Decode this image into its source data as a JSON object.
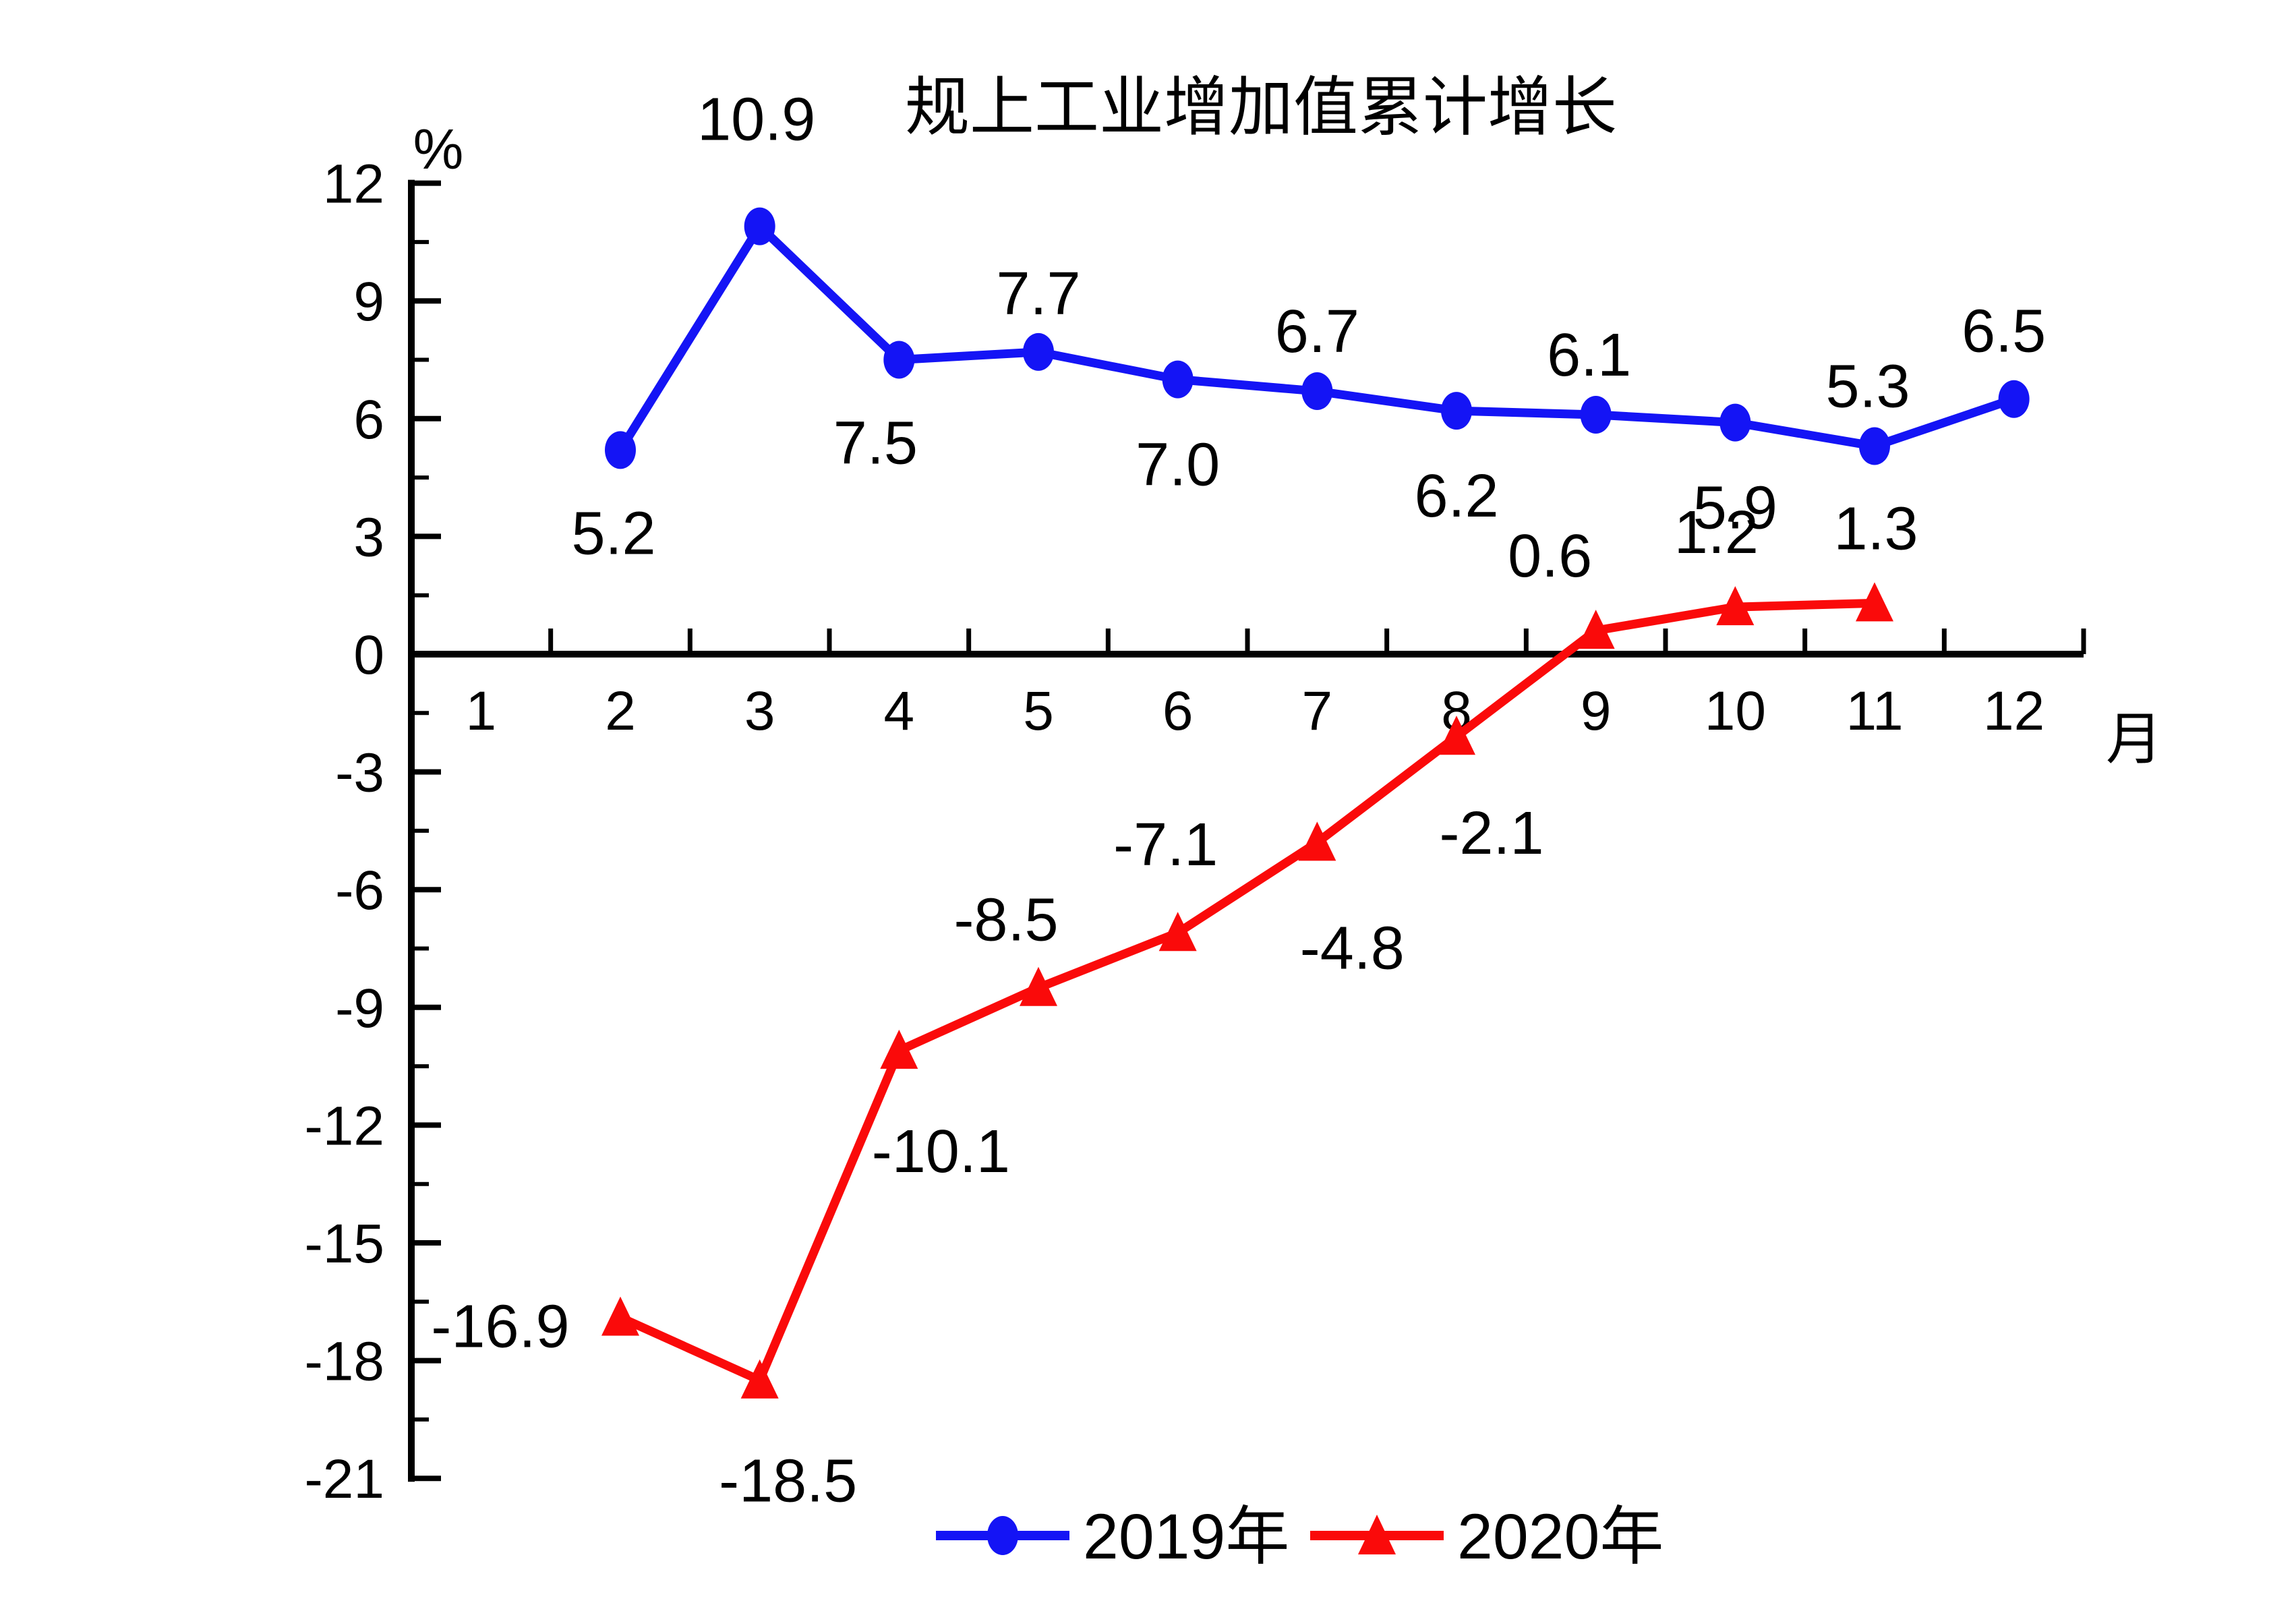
{
  "chart_data": {
    "type": "line",
    "title": "规上工业增加值累计增长",
    "y_unit": "%",
    "x_unit": "月",
    "grid": false,
    "legend_position": "bottom-center",
    "x_axis": {
      "ticks": [
        1,
        2,
        3,
        4,
        5,
        6,
        7,
        8,
        9,
        10,
        11,
        12
      ],
      "range": [
        0,
        12
      ]
    },
    "y_axis": {
      "min": -21,
      "max": 12,
      "major_step": 3,
      "minor_step": 1.5
    },
    "axis_color": "#000000",
    "series": [
      {
        "name": "2019年",
        "color": "#1414f5",
        "marker": "circle",
        "points": [
          {
            "x": 2,
            "y": 5.2,
            "label": "5.2",
            "label_offset": [
              -10,
              122
            ]
          },
          {
            "x": 3,
            "y": 10.9,
            "label": "10.9",
            "label_offset": [
              -5,
              -160
            ]
          },
          {
            "x": 4,
            "y": 7.5,
            "label": "7.5",
            "label_offset": [
              -35,
              122
            ]
          },
          {
            "x": 5,
            "y": 7.7,
            "label": "7.7",
            "label_offset": [
              0,
              -88
            ]
          },
          {
            "x": 6,
            "y": 7.0,
            "label": "7.0",
            "label_offset": [
              0,
              125
            ]
          },
          {
            "x": 7,
            "y": 6.7,
            "label": "6.7",
            "label_offset": [
              0,
              -90
            ]
          },
          {
            "x": 8,
            "y": 6.2,
            "label": "6.2",
            "label_offset": [
              0,
              125
            ]
          },
          {
            "x": 9,
            "y": 6.1,
            "label": "6.1",
            "label_offset": [
              -10,
              -90
            ]
          },
          {
            "x": 10,
            "y": 5.9,
            "label": "5.9",
            "label_offset": [
              0,
              125
            ]
          },
          {
            "x": 11,
            "y": 5.3,
            "label": "5.3",
            "label_offset": [
              -10,
              -90
            ]
          },
          {
            "x": 12,
            "y": 6.5,
            "label": "6.5",
            "label_offset": [
              -15,
              -102
            ]
          }
        ]
      },
      {
        "name": "2020年",
        "color": "#fa0a0a",
        "marker": "triangle",
        "points": [
          {
            "x": 2,
            "y": -16.9,
            "label": "-16.9",
            "label_offset": [
              -178,
              12
            ]
          },
          {
            "x": 3,
            "y": -18.5,
            "label": "-18.5",
            "label_offset": [
              42,
              148
            ]
          },
          {
            "x": 4,
            "y": -10.1,
            "label": "-10.1",
            "label_offset": [
              62,
              148
            ]
          },
          {
            "x": 5,
            "y": -8.5,
            "label": "-8.5",
            "label_offset": [
              -48,
              -102
            ]
          },
          {
            "x": 6,
            "y": -7.1,
            "label": "-7.1",
            "label_offset": [
              -18,
              -132
            ]
          },
          {
            "x": 7,
            "y": -4.8,
            "label": "-4.8",
            "label_offset": [
              52,
              155
            ]
          },
          {
            "x": 8,
            "y": -2.1,
            "label": "-2.1",
            "label_offset": [
              52,
              142
            ]
          },
          {
            "x": 9,
            "y": 0.6,
            "label": "0.6",
            "label_offset": [
              -68,
              -112
            ]
          },
          {
            "x": 10,
            "y": 1.2,
            "label": "1.2",
            "label_offset": [
              -28,
              -112
            ]
          },
          {
            "x": 11,
            "y": 1.3,
            "label": "1.3",
            "label_offset": [
              2,
              -112
            ]
          }
        ]
      }
    ]
  }
}
